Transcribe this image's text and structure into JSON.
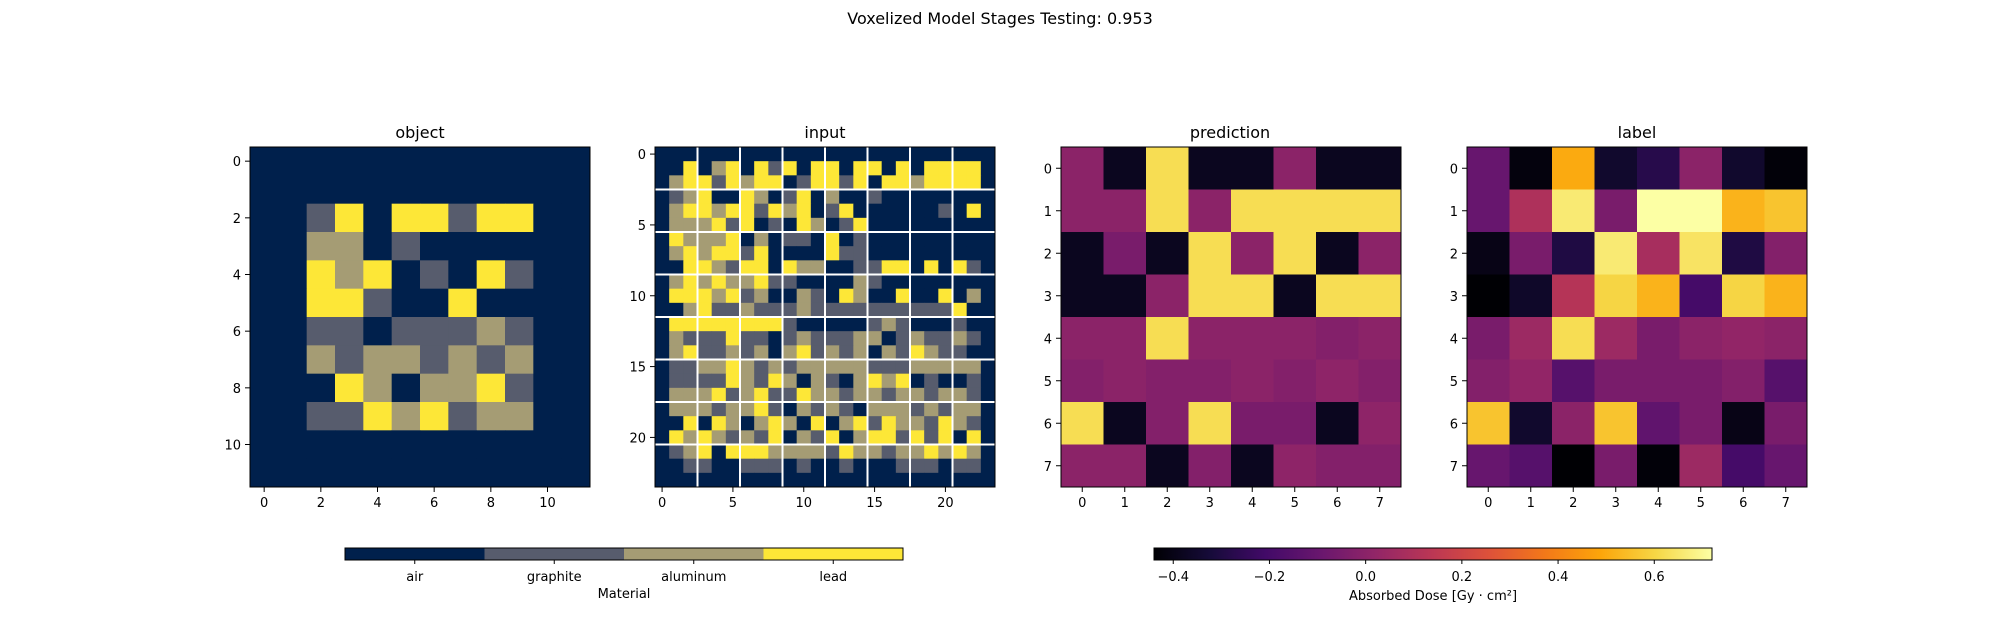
{
  "chart_data": {
    "type": "heatmap",
    "title": "Voxelized Model Stages Testing: 0.953",
    "panels": {
      "object": {
        "title": "object",
        "rows": 12,
        "cols": 12,
        "x_ticks": [
          0,
          2,
          4,
          6,
          8,
          10
        ],
        "y_ticks": [
          0,
          2,
          4,
          6,
          8,
          10
        ],
        "grid": [
          [
            0,
            0,
            0,
            0,
            0,
            0,
            0,
            0,
            0,
            0,
            0,
            0
          ],
          [
            0,
            0,
            0,
            0,
            0,
            0,
            0,
            0,
            0,
            0,
            0,
            0
          ],
          [
            0,
            0,
            1,
            3,
            0,
            3,
            3,
            1,
            3,
            3,
            0,
            0
          ],
          [
            0,
            0,
            2,
            2,
            0,
            1,
            0,
            0,
            0,
            0,
            0,
            0
          ],
          [
            0,
            0,
            3,
            2,
            3,
            0,
            1,
            0,
            3,
            1,
            0,
            0
          ],
          [
            0,
            0,
            3,
            3,
            1,
            0,
            0,
            3,
            0,
            0,
            0,
            0
          ],
          [
            0,
            0,
            1,
            1,
            0,
            1,
            1,
            1,
            2,
            1,
            0,
            0
          ],
          [
            0,
            0,
            2,
            1,
            2,
            2,
            1,
            2,
            1,
            2,
            0,
            0
          ],
          [
            0,
            0,
            0,
            3,
            2,
            0,
            2,
            2,
            3,
            1,
            0,
            0
          ],
          [
            0,
            0,
            1,
            1,
            3,
            2,
            3,
            1,
            2,
            2,
            0,
            0
          ],
          [
            0,
            0,
            0,
            0,
            0,
            0,
            0,
            0,
            0,
            0,
            0,
            0
          ],
          [
            0,
            0,
            0,
            0,
            0,
            0,
            0,
            0,
            0,
            0,
            0,
            0
          ]
        ]
      },
      "input": {
        "title": "input",
        "rows": 24,
        "cols": 24,
        "x_ticks": [
          0,
          5,
          10,
          15,
          20
        ],
        "y_ticks": [
          0,
          5,
          10,
          15,
          20
        ],
        "white_grid_every": 3,
        "grid": [
          [
            0,
            0,
            0,
            0,
            0,
            0,
            0,
            0,
            0,
            0,
            0,
            0,
            0,
            0,
            0,
            0,
            0,
            0,
            0,
            0,
            0,
            0,
            0,
            0
          ],
          [
            0,
            0,
            3,
            0,
            2,
            3,
            0,
            3,
            1,
            3,
            0,
            3,
            3,
            0,
            3,
            3,
            0,
            3,
            0,
            3,
            3,
            3,
            3,
            0
          ],
          [
            0,
            2,
            3,
            3,
            1,
            3,
            2,
            3,
            3,
            0,
            1,
            3,
            3,
            1,
            3,
            0,
            3,
            3,
            2,
            3,
            3,
            3,
            3,
            0
          ],
          [
            0,
            1,
            2,
            3,
            0,
            0,
            3,
            2,
            0,
            1,
            3,
            0,
            2,
            0,
            0,
            1,
            0,
            0,
            0,
            0,
            0,
            0,
            0,
            0
          ],
          [
            0,
            2,
            3,
            3,
            2,
            3,
            3,
            1,
            3,
            2,
            3,
            0,
            1,
            3,
            0,
            0,
            0,
            0,
            0,
            0,
            1,
            0,
            3,
            0
          ],
          [
            0,
            2,
            2,
            2,
            3,
            1,
            3,
            0,
            1,
            0,
            3,
            2,
            0,
            1,
            3,
            0,
            0,
            0,
            0,
            0,
            0,
            0,
            0,
            0
          ],
          [
            0,
            3,
            2,
            2,
            2,
            3,
            0,
            2,
            0,
            1,
            1,
            0,
            3,
            0,
            1,
            0,
            0,
            0,
            0,
            0,
            0,
            0,
            0,
            0
          ],
          [
            0,
            2,
            3,
            2,
            3,
            3,
            1,
            3,
            0,
            0,
            0,
            0,
            3,
            1,
            1,
            0,
            0,
            0,
            0,
            0,
            0,
            0,
            0,
            0
          ],
          [
            0,
            0,
            3,
            3,
            2,
            1,
            3,
            3,
            0,
            3,
            2,
            2,
            0,
            0,
            1,
            1,
            3,
            3,
            0,
            3,
            0,
            3,
            1,
            0
          ],
          [
            0,
            2,
            3,
            2,
            3,
            2,
            2,
            3,
            1,
            1,
            0,
            0,
            0,
            0,
            2,
            1,
            0,
            0,
            0,
            0,
            0,
            0,
            0,
            0
          ],
          [
            0,
            3,
            3,
            3,
            2,
            3,
            1,
            2,
            0,
            0,
            2,
            1,
            0,
            3,
            2,
            0,
            0,
            3,
            0,
            0,
            3,
            0,
            2,
            0
          ],
          [
            0,
            0,
            2,
            3,
            1,
            1,
            2,
            1,
            1,
            1,
            2,
            1,
            1,
            1,
            1,
            1,
            1,
            1,
            1,
            1,
            1,
            3,
            0,
            0
          ],
          [
            0,
            3,
            3,
            3,
            3,
            3,
            3,
            3,
            3,
            1,
            0,
            0,
            0,
            0,
            0,
            1,
            2,
            1,
            0,
            0,
            0,
            1,
            0,
            0
          ],
          [
            0,
            2,
            1,
            1,
            1,
            3,
            1,
            1,
            0,
            1,
            2,
            1,
            1,
            1,
            2,
            2,
            0,
            1,
            2,
            1,
            1,
            2,
            1,
            0
          ],
          [
            0,
            2,
            3,
            1,
            1,
            2,
            1,
            2,
            0,
            2,
            3,
            1,
            2,
            1,
            2,
            0,
            2,
            1,
            3,
            2,
            1,
            1,
            0,
            0
          ],
          [
            0,
            1,
            1,
            2,
            2,
            3,
            2,
            1,
            2,
            1,
            2,
            2,
            2,
            2,
            2,
            1,
            1,
            1,
            2,
            2,
            2,
            2,
            2,
            0
          ],
          [
            0,
            1,
            1,
            1,
            1,
            3,
            2,
            1,
            3,
            2,
            0,
            2,
            1,
            0,
            2,
            3,
            2,
            3,
            0,
            1,
            0,
            0,
            1,
            0
          ],
          [
            0,
            2,
            2,
            2,
            3,
            1,
            2,
            3,
            1,
            1,
            3,
            2,
            2,
            1,
            2,
            2,
            1,
            2,
            2,
            1,
            2,
            2,
            1,
            0
          ],
          [
            0,
            2,
            2,
            2,
            1,
            2,
            2,
            3,
            1,
            0,
            2,
            1,
            2,
            1,
            0,
            2,
            2,
            2,
            1,
            2,
            1,
            2,
            2,
            0
          ],
          [
            0,
            0,
            3,
            0,
            3,
            2,
            0,
            2,
            3,
            2,
            0,
            3,
            0,
            2,
            3,
            1,
            3,
            2,
            2,
            1,
            3,
            2,
            1,
            0
          ],
          [
            0,
            3,
            2,
            3,
            2,
            1,
            2,
            1,
            3,
            0,
            2,
            1,
            3,
            0,
            2,
            3,
            3,
            1,
            3,
            1,
            3,
            0,
            3,
            0
          ],
          [
            0,
            1,
            2,
            3,
            0,
            3,
            3,
            3,
            2,
            2,
            2,
            2,
            1,
            3,
            2,
            2,
            1,
            2,
            2,
            3,
            2,
            3,
            2,
            0
          ],
          [
            0,
            0,
            1,
            1,
            0,
            0,
            1,
            1,
            1,
            0,
            1,
            0,
            0,
            1,
            0,
            0,
            0,
            1,
            1,
            1,
            0,
            1,
            1,
            0
          ],
          [
            0,
            0,
            0,
            0,
            0,
            0,
            0,
            0,
            0,
            0,
            0,
            0,
            0,
            0,
            0,
            0,
            0,
            0,
            0,
            0,
            0,
            0,
            0,
            0
          ]
        ]
      },
      "prediction": {
        "title": "prediction",
        "rows": 8,
        "cols": 8,
        "x_ticks": [
          0,
          1,
          2,
          3,
          4,
          5,
          6,
          7
        ],
        "y_ticks": [
          0,
          1,
          2,
          3,
          4,
          5,
          6,
          7
        ],
        "values": [
          [
            0.0,
            -0.38,
            0.62,
            -0.38,
            -0.38,
            0.0,
            -0.38,
            -0.38
          ],
          [
            0.0,
            0.0,
            0.62,
            0.0,
            0.62,
            0.62,
            0.62,
            0.62
          ],
          [
            -0.38,
            -0.05,
            -0.38,
            0.62,
            0.0,
            0.62,
            -0.38,
            0.0
          ],
          [
            -0.38,
            -0.38,
            0.0,
            0.62,
            0.62,
            -0.38,
            0.62,
            0.62
          ],
          [
            0.0,
            0.0,
            0.62,
            0.0,
            0.0,
            0.0,
            -0.02,
            0.0
          ],
          [
            -0.02,
            0.0,
            -0.02,
            -0.02,
            0.0,
            -0.02,
            0.01,
            -0.02
          ],
          [
            0.62,
            -0.38,
            -0.02,
            0.62,
            -0.05,
            -0.05,
            -0.38,
            0.01
          ],
          [
            0.0,
            0.0,
            -0.38,
            -0.02,
            -0.38,
            0.01,
            -0.02,
            -0.02
          ]
        ]
      },
      "label": {
        "title": "label",
        "rows": 8,
        "cols": 8,
        "x_ticks": [
          0,
          1,
          2,
          3,
          4,
          5,
          6,
          7
        ],
        "y_ticks": [
          0,
          1,
          2,
          3,
          4,
          5,
          6,
          7
        ],
        "values": [
          [
            -0.1,
            -0.42,
            0.5,
            -0.35,
            -0.28,
            0.0,
            -0.35,
            -0.43
          ],
          [
            -0.1,
            0.1,
            0.66,
            -0.05,
            0.72,
            0.72,
            0.52,
            0.56
          ],
          [
            -0.4,
            -0.05,
            -0.3,
            0.66,
            0.08,
            0.64,
            -0.3,
            -0.02
          ],
          [
            -0.45,
            -0.36,
            0.12,
            0.6,
            0.52,
            -0.2,
            0.6,
            0.52
          ],
          [
            -0.05,
            0.05,
            0.62,
            0.05,
            -0.05,
            0.0,
            0.02,
            0.0
          ],
          [
            -0.02,
            0.02,
            -0.15,
            -0.05,
            -0.05,
            -0.05,
            -0.02,
            -0.15
          ],
          [
            0.56,
            -0.35,
            0.0,
            0.56,
            -0.12,
            -0.05,
            -0.4,
            -0.05
          ],
          [
            -0.1,
            -0.15,
            -0.45,
            -0.05,
            -0.43,
            0.05,
            -0.2,
            -0.1
          ]
        ]
      }
    },
    "material_colorbar": {
      "label": "Material",
      "categories": [
        "air",
        "graphite",
        "aluminum",
        "lead"
      ],
      "colors": [
        "#00204c",
        "#575c6d",
        "#a59c74",
        "#fde737"
      ]
    },
    "dose_colorbar": {
      "label": "Absorbed Dose",
      "unit": "[Gy · cm²]",
      "vmin": -0.44,
      "vmax": 0.72,
      "ticks": [
        -0.4,
        -0.2,
        0.0,
        0.2,
        0.4,
        0.6
      ],
      "tick_labels": [
        "−0.4",
        "−0.2",
        "0.0",
        "0.2",
        "0.4",
        "0.6"
      ]
    }
  }
}
